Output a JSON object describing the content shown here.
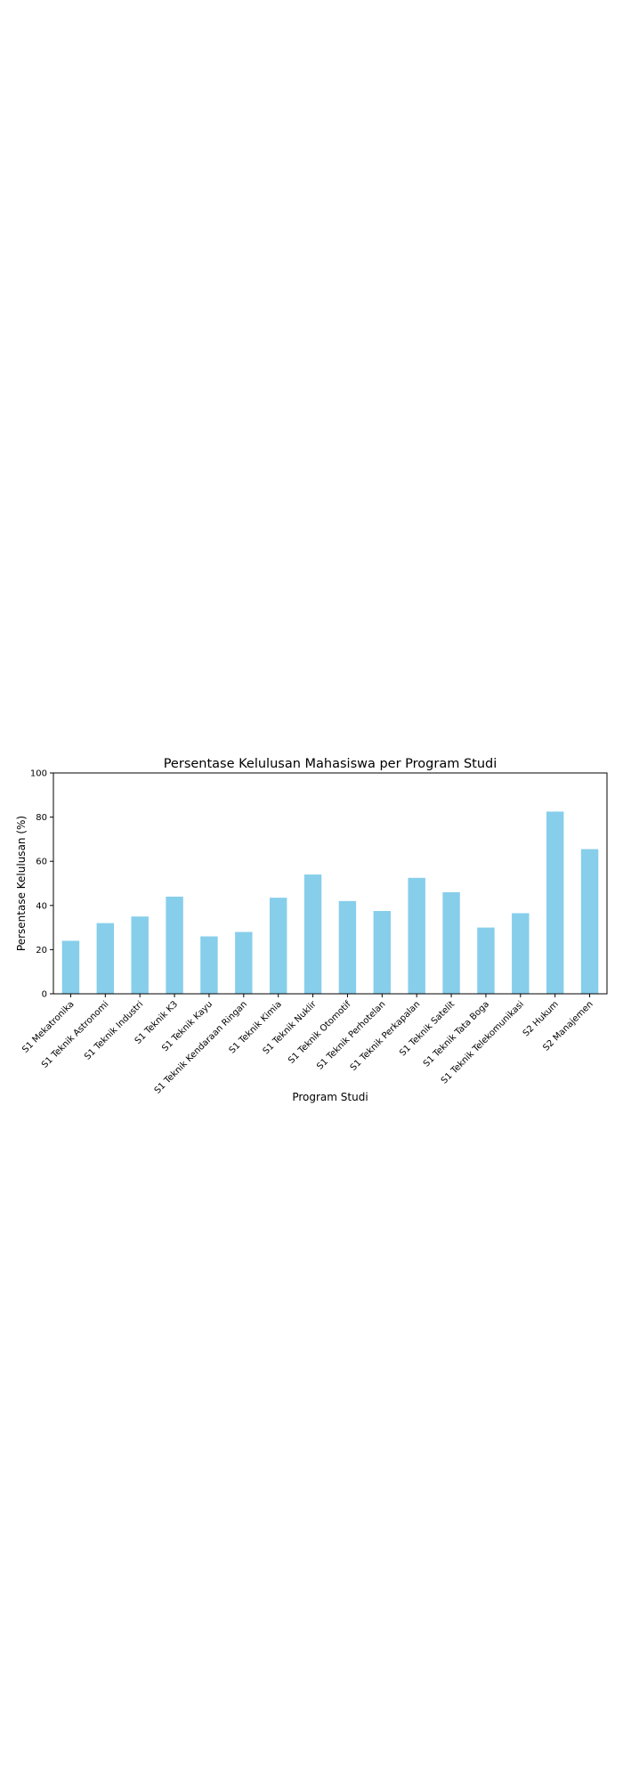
{
  "chart_data": {
    "type": "bar",
    "title": "Persentase Kelulusan Mahasiswa per Program Studi",
    "xlabel": "Program Studi",
    "ylabel": "Persentase Kelulusan (%)",
    "ylim": [
      0,
      100
    ],
    "yticks": [
      0,
      20,
      40,
      60,
      80,
      100
    ],
    "grid": false,
    "legend": "none",
    "bar_color": "#87CEEB",
    "categories": [
      "S1 Mekatronika",
      "S1 Teknik Astronomi",
      "S1 Teknik Industri",
      "S1 Teknik K3",
      "S1 Teknik Kayu",
      "S1 Teknik Kendaraan Ringan",
      "S1 Teknik Kimia",
      "S1 Teknik Nuklir",
      "S1 Teknik Otomotif",
      "S1 Teknik Perhotelan",
      "S1 Teknik Perkapalan",
      "S1 Teknik Satelit",
      "S1 Teknik Tata Boga",
      "S1 Teknik Telekomunikasi",
      "S2 Hukum",
      "S2 Manajemen"
    ],
    "values": [
      24,
      32,
      35,
      44,
      26,
      28,
      43.5,
      54,
      42,
      37.5,
      52.5,
      46,
      30,
      36.5,
      82.5,
      65.5
    ]
  }
}
